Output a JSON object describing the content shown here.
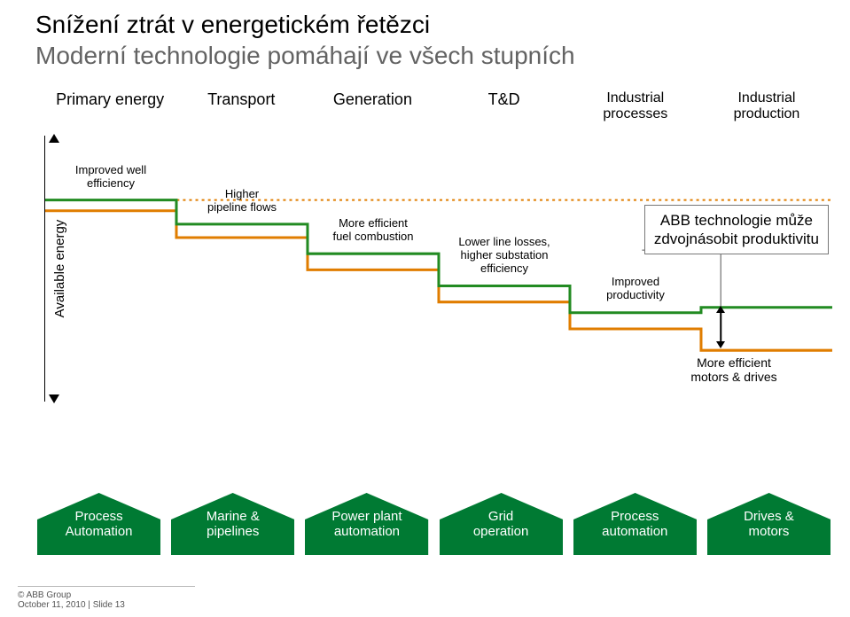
{
  "title": {
    "line1": "Snížení ztrát v energetickém řetězci",
    "line2": "Moderní technologie pomáhají ve všech stupních",
    "color1": "#000000",
    "color2": "#636363",
    "fontsize": 28
  },
  "stages": [
    {
      "label": "Primary energy"
    },
    {
      "label": "Transport"
    },
    {
      "label": "Generation"
    },
    {
      "label": "T&D"
    },
    {
      "label": "Industrial processes"
    },
    {
      "label": "Industrial production"
    }
  ],
  "y_axis_label": "Available energy",
  "chart": {
    "width_units": 6,
    "baseline_color": "#e07d00",
    "baseline_width": 3,
    "improved_color": "#228b22",
    "improved_width": 3,
    "dotted_color": "#e07d00",
    "background": "#ffffff",
    "baseline_levels": [
      0.28,
      0.38,
      0.5,
      0.62,
      0.72,
      0.8
    ],
    "improved_offsets": [
      0.04,
      0.05,
      0.06,
      0.06,
      0.06,
      0.16
    ],
    "step_labels": [
      {
        "text": "Improved well\nefficiency",
        "col": 0
      },
      {
        "text": "Higher\npipeline flows",
        "col": 1
      },
      {
        "text": "More efficient\nfuel combustion",
        "col": 2
      },
      {
        "text": "Lower line losses,\nhigher substation\nefficiency",
        "col": 3
      },
      {
        "text": "Improved\nproductivity",
        "col": 4
      }
    ],
    "label_fontsize": 13
  },
  "callout": {
    "text": "ABB technologie může\nzdvojnásobit produktivitu",
    "fontsize": 17,
    "border_color": "#777777"
  },
  "bottom_note": "More efficient\nmotors & drives",
  "hex_buttons": [
    {
      "label": "Process\nAutomation"
    },
    {
      "label": "Marine &\npipelines"
    },
    {
      "label": "Power plant\nautomation"
    },
    {
      "label": "Grid\noperation"
    },
    {
      "label": "Process\nautomation"
    },
    {
      "label": "Drives &\nmotors"
    }
  ],
  "hex_style": {
    "fill": "#007a33",
    "text_color": "#ffffff",
    "fontsize": 15
  },
  "footer": {
    "line1": "© ABB Group",
    "line2": "October 11, 2010 | Slide 13"
  }
}
